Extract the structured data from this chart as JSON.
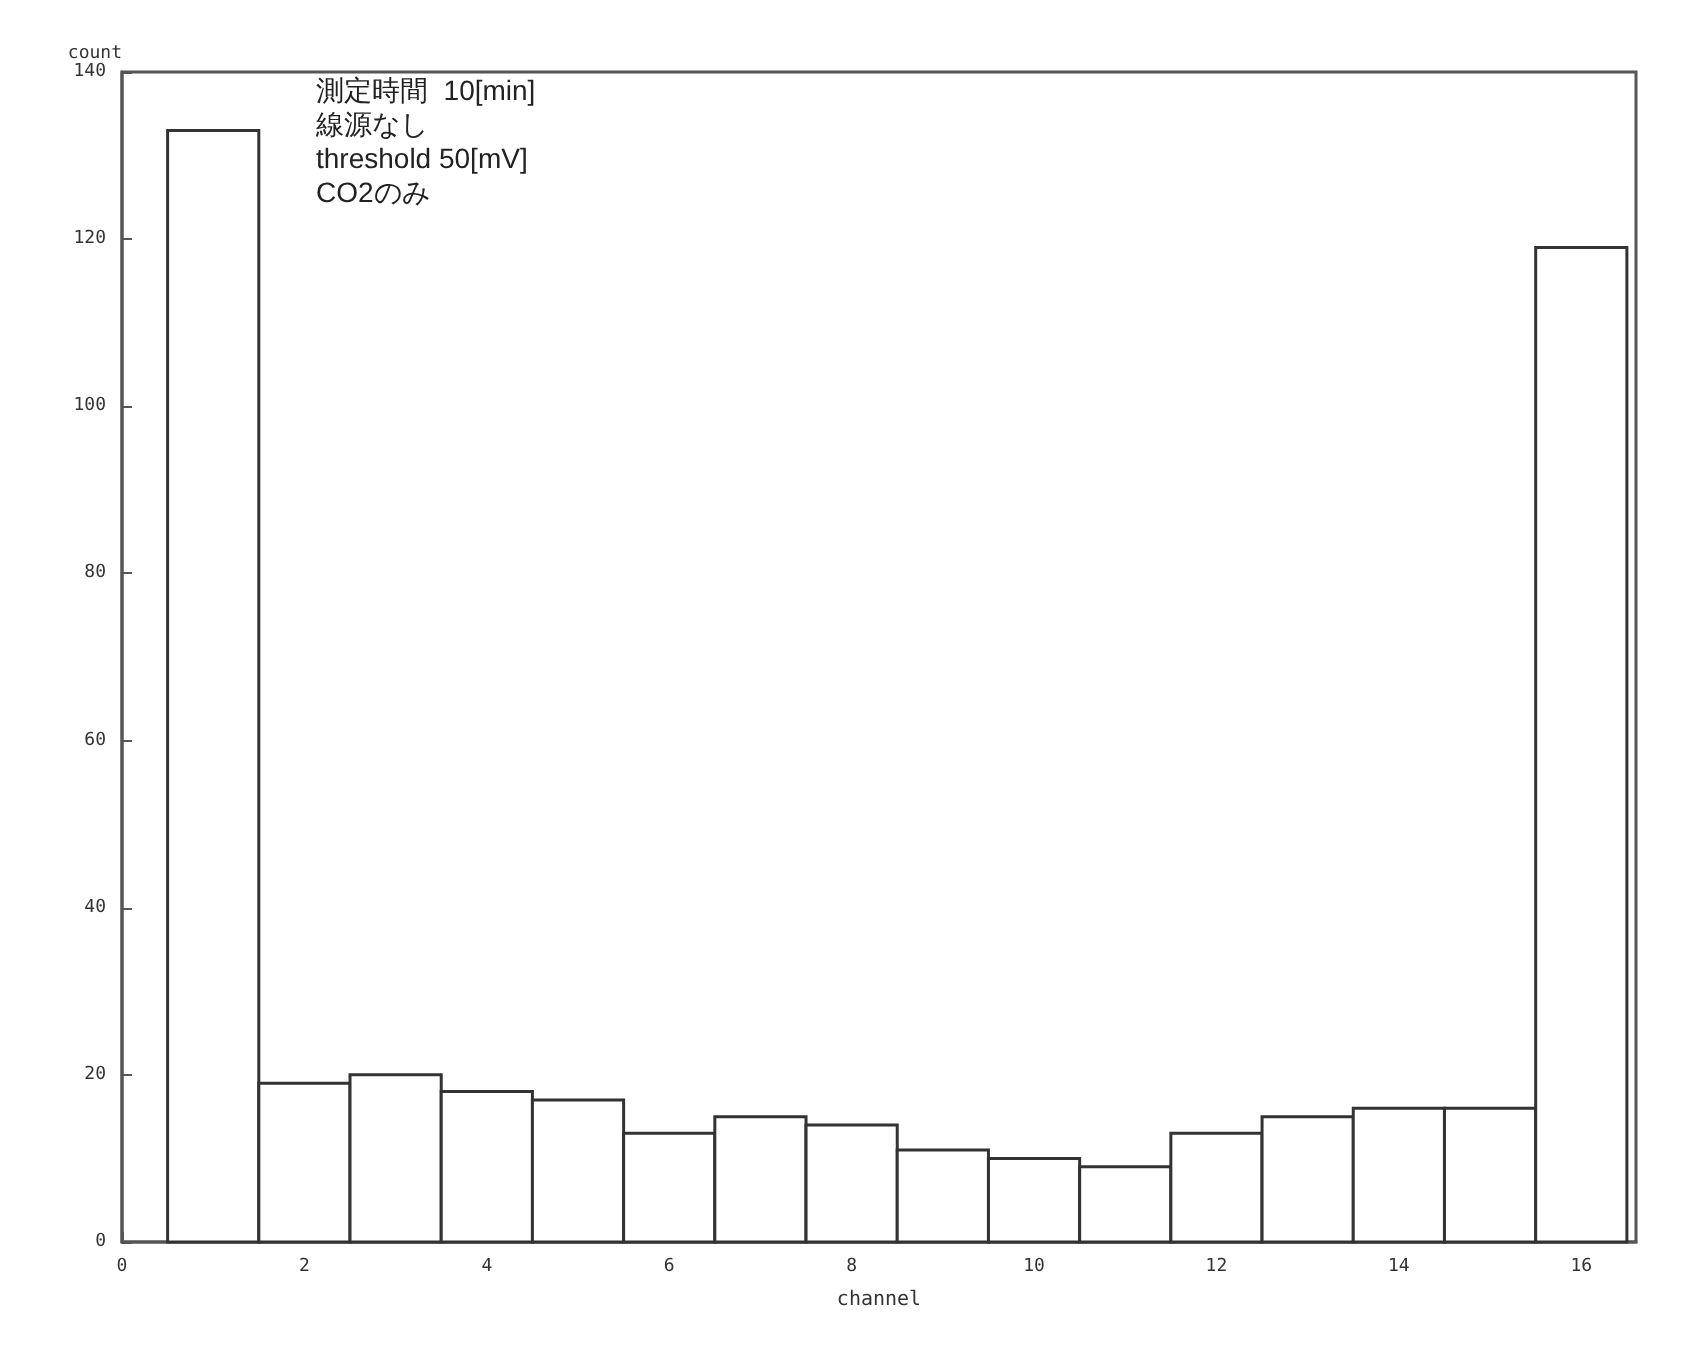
{
  "chart_data": {
    "type": "histogram",
    "xlabel": "channel",
    "ylabel": "count",
    "annotations": [
      "測定時間  10[min]",
      "線源なし",
      "threshold 50[mV]",
      "CO2のみ"
    ],
    "bins": [
      0.5,
      1.5,
      2.5,
      3.5,
      4.5,
      5.5,
      6.5,
      7.5,
      8.5,
      9.5,
      10.5,
      11.5,
      12.5,
      13.5,
      14.5,
      15.5,
      16.5
    ],
    "values": [
      133,
      19,
      20,
      18,
      17,
      13,
      15,
      14,
      11,
      10,
      9,
      13,
      15,
      16,
      16,
      119
    ],
    "color": "#ffffff",
    "xlim": [
      0,
      16.6
    ],
    "xticks": [
      0,
      2,
      4,
      6,
      8,
      10,
      12,
      14,
      16
    ],
    "ylim": [
      0,
      140
    ],
    "yticks": [
      0,
      20,
      40,
      60,
      80,
      100,
      120,
      140
    ]
  }
}
